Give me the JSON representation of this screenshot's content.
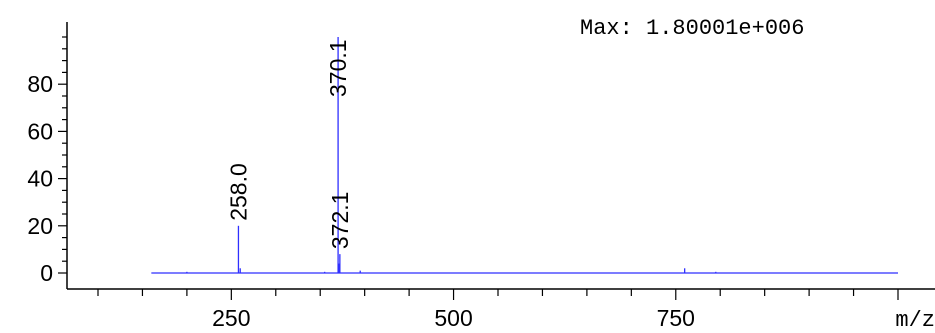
{
  "chart_data": {
    "type": "line",
    "title": "",
    "xlabel": "m/z",
    "ylabel": "",
    "max_text": "Max: 1.80001e+006",
    "xlim": [
      100,
      1000
    ],
    "ylim": [
      -4,
      104
    ],
    "x_ticks": [
      250,
      500,
      750
    ],
    "x_tick_labels": [
      "250",
      "500",
      "750"
    ],
    "y_ticks": [
      0,
      20,
      40,
      60,
      80
    ],
    "y_tick_labels": [
      "0",
      "20",
      "40",
      "60",
      "80"
    ],
    "grid": false,
    "legend": "none",
    "series": [
      {
        "color": "#2f2fff",
        "x_range": [
          160,
          1000
        ],
        "peaks": [
          {
            "x": 258.0,
            "y": 20,
            "label": "258.0"
          },
          {
            "x": 370.1,
            "y": 100,
            "label": "370.1"
          },
          {
            "x": 372.1,
            "y": 8,
            "label": "372.1"
          },
          {
            "x": 260.0,
            "y": 2
          },
          {
            "x": 371.1,
            "y": 4
          },
          {
            "x": 395.0,
            "y": 1
          },
          {
            "x": 760.0,
            "y": 2
          },
          {
            "x": 795.0,
            "y": 0.5
          },
          {
            "x": 200.0,
            "y": 0.5
          },
          {
            "x": 355.0,
            "y": 0.5
          }
        ]
      }
    ]
  }
}
